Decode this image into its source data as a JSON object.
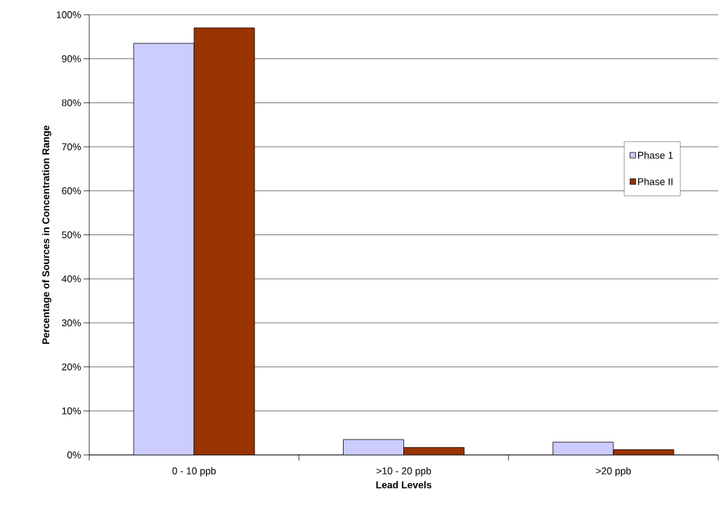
{
  "chart_data": {
    "type": "bar",
    "xlabel": "Lead Levels",
    "ylabel": "Percentage of Sources in Concentration Range",
    "categories": [
      "0 - 10 ppb",
      ">10 - 20 ppb",
      ">20 ppb"
    ],
    "series": [
      {
        "name": "Phase 1",
        "color": "#ccccff",
        "values": [
          93.5,
          3.5,
          2.9
        ]
      },
      {
        "name": "Phase II",
        "color": "#993300",
        "values": [
          97.0,
          1.7,
          1.2
        ]
      }
    ],
    "ylim": [
      0,
      100
    ],
    "yticks": [
      {
        "value": 0,
        "label": "0%"
      },
      {
        "value": 10,
        "label": "10%"
      },
      {
        "value": 20,
        "label": "20%"
      },
      {
        "value": 30,
        "label": "30%"
      },
      {
        "value": 40,
        "label": "40%"
      },
      {
        "value": 50,
        "label": "50%"
      },
      {
        "value": 60,
        "label": "60%"
      },
      {
        "value": 70,
        "label": "70%"
      },
      {
        "value": 80,
        "label": "80%"
      },
      {
        "value": 90,
        "label": "90%"
      },
      {
        "value": 100,
        "label": "100%"
      }
    ],
    "grid": "y",
    "legend": "right"
  }
}
